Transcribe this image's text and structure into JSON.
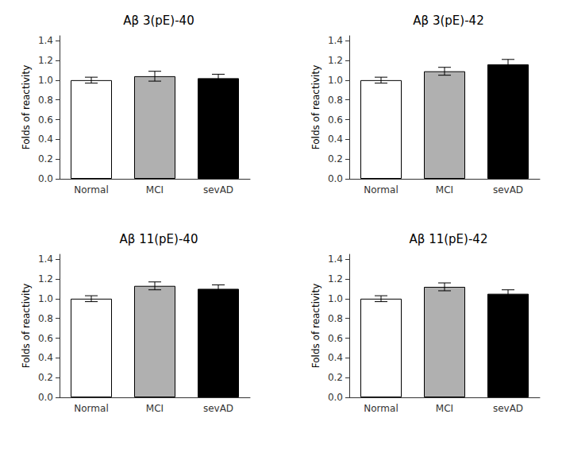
{
  "chart_data": [
    {
      "type": "bar",
      "title": "Aβ 3(pE)-40",
      "ylabel": "Folds of reactivity",
      "categories": [
        "Normal",
        "MCI",
        "sevAD"
      ],
      "values": [
        1.0,
        1.04,
        1.02
      ],
      "errors": [
        0.03,
        0.05,
        0.04
      ],
      "colors": [
        "#ffffff",
        "#b0b0b0",
        "#000000"
      ],
      "ylim": [
        0,
        1.45
      ],
      "yticks": [
        {
          "value": 0,
          "label": "0.0"
        },
        0.2,
        0.4,
        0.6,
        0.8,
        {
          "value": 1,
          "label": "1.0"
        },
        1.2,
        1.4
      ],
      "grid": false
    },
    {
      "type": "bar",
      "title": "Aβ 3(pE)-42",
      "ylabel": "Folds of reactivity",
      "categories": [
        "Normal",
        "MCI",
        "sevAD"
      ],
      "values": [
        1.0,
        1.09,
        1.16
      ],
      "errors": [
        0.03,
        0.04,
        0.05
      ],
      "colors": [
        "#ffffff",
        "#b0b0b0",
        "#000000"
      ],
      "ylim": [
        0,
        1.45
      ],
      "yticks": [
        {
          "value": 0,
          "label": "0.0"
        },
        0.2,
        0.4,
        0.6,
        0.8,
        {
          "value": 1,
          "label": "1.0"
        },
        1.2,
        1.4
      ],
      "grid": false
    },
    {
      "type": "bar",
      "title": "Aβ 11(pE)-40",
      "ylabel": "Folds of reactivity",
      "categories": [
        "Normal",
        "MCI",
        "sevAD"
      ],
      "values": [
        1.0,
        1.13,
        1.1
      ],
      "errors": [
        0.03,
        0.04,
        0.04
      ],
      "colors": [
        "#ffffff",
        "#b0b0b0",
        "#000000"
      ],
      "ylim": [
        0,
        1.45
      ],
      "yticks": [
        {
          "value": 0,
          "label": "0.0"
        },
        0.2,
        0.4,
        0.6,
        0.8,
        {
          "value": 1,
          "label": "1.0"
        },
        1.2,
        1.4
      ],
      "grid": false
    },
    {
      "type": "bar",
      "title": "Aβ 11(pE)-42",
      "ylabel": "Folds of reactivity",
      "categories": [
        "Normal",
        "MCI",
        "sevAD"
      ],
      "values": [
        1.0,
        1.12,
        1.05
      ],
      "errors": [
        0.03,
        0.04,
        0.04
      ],
      "colors": [
        "#ffffff",
        "#b0b0b0",
        "#000000"
      ],
      "ylim": [
        0,
        1.45
      ],
      "yticks": [
        {
          "value": 0,
          "label": "0.0"
        },
        0.2,
        0.4,
        0.6,
        0.8,
        {
          "value": 1,
          "label": "1.0"
        },
        1.2,
        1.4
      ],
      "grid": false
    }
  ]
}
